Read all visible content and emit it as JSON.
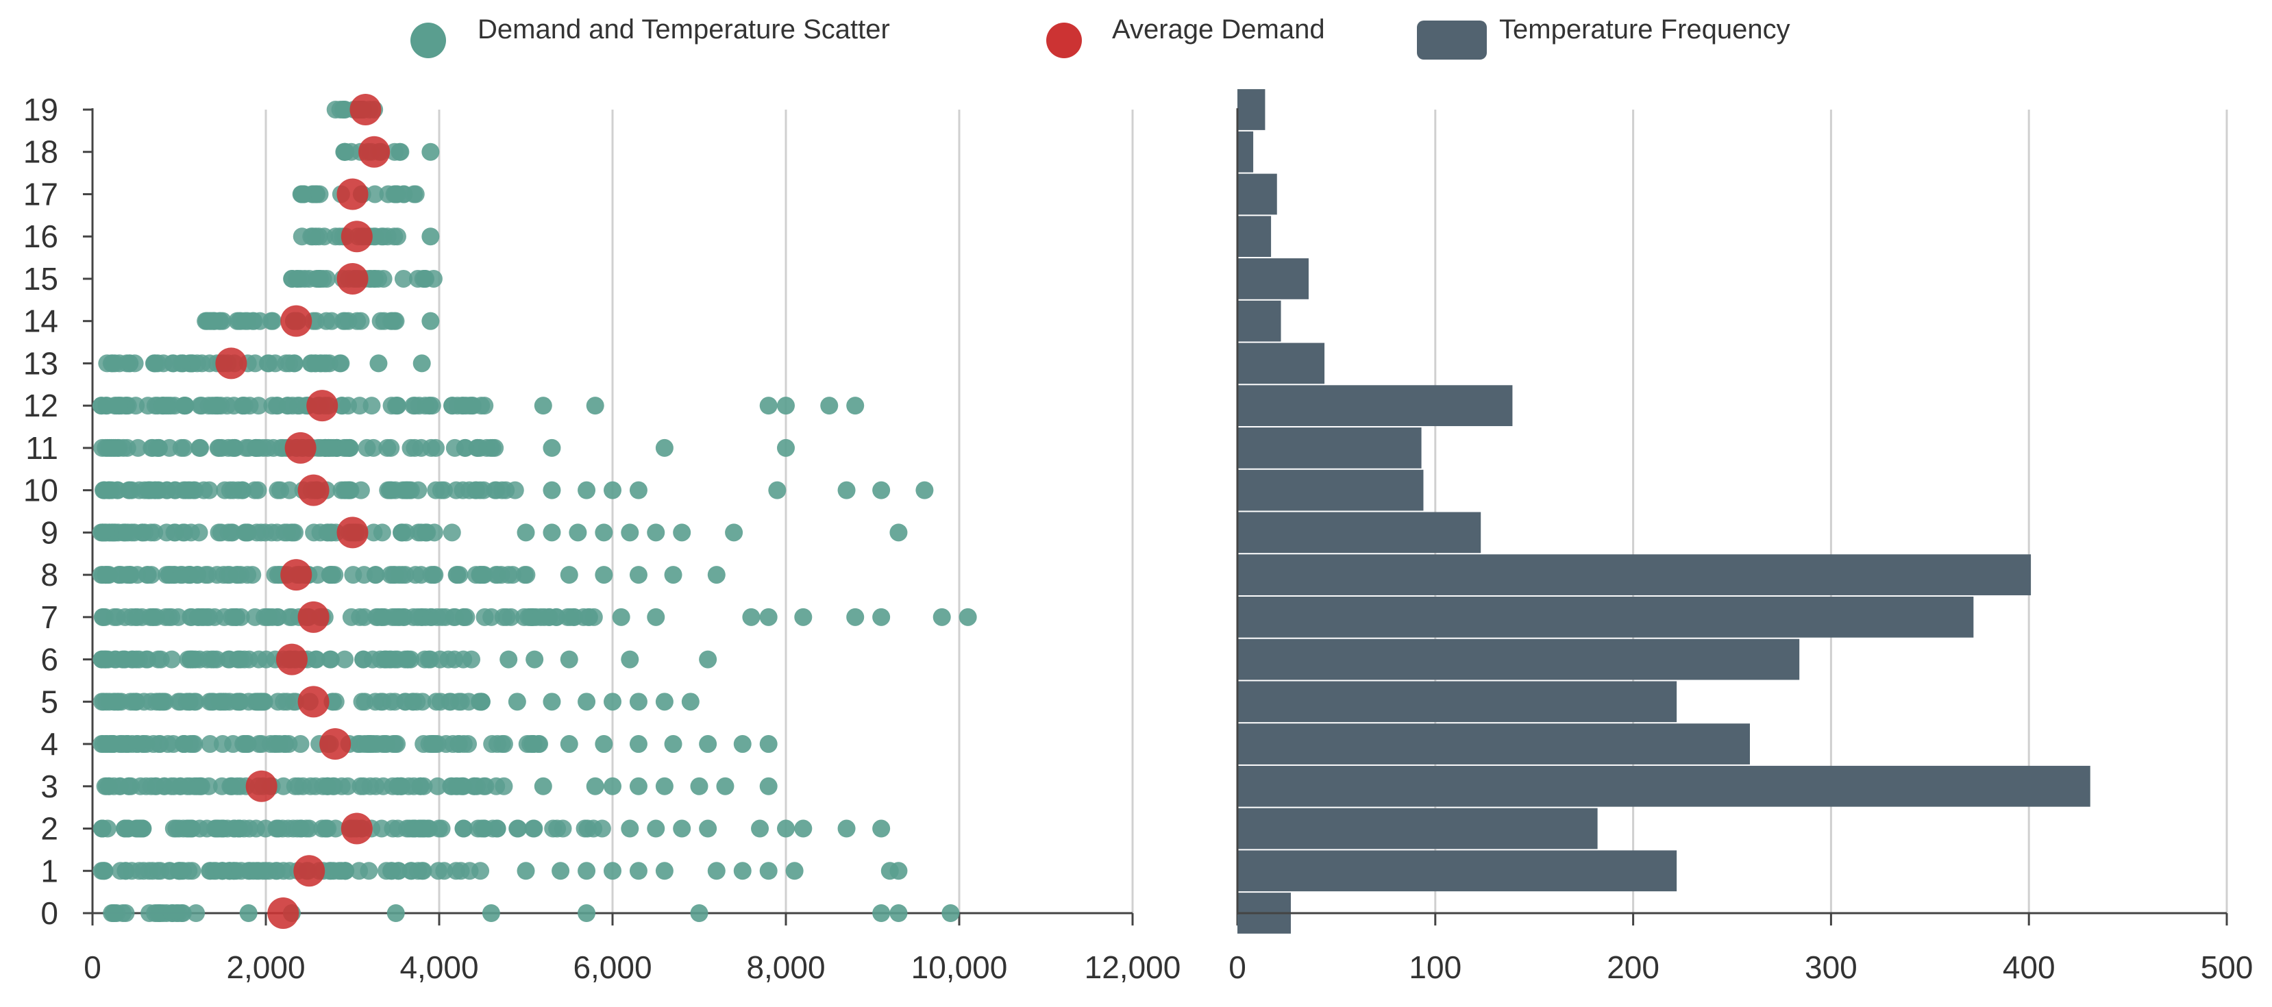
{
  "colors": {
    "scatter": "#5a9e8f",
    "average": "#cc3333",
    "histogram": "#526370",
    "grid": "#d0d0d0",
    "axis": "#444444"
  },
  "legend": [
    {
      "label": "Demand and Temperature Scatter",
      "shape": "circle",
      "color": "#5a9e8f"
    },
    {
      "label": "Average Demand",
      "shape": "circle",
      "color": "#cc3333"
    },
    {
      "label": "Temperature Frequency",
      "shape": "rect",
      "color": "#526370"
    }
  ],
  "chart_data": [
    {
      "type": "scatter",
      "title": "Demand and Temperature Scatter",
      "xlabel": "",
      "ylabel": "",
      "xlim": [
        0,
        12000
      ],
      "ylim": [
        0,
        19
      ],
      "x_ticks": [
        "0",
        "2,000",
        "4,000",
        "6,000",
        "8,000",
        "10,000",
        "12,000"
      ],
      "y_ticks": [
        "0",
        "1",
        "2",
        "3",
        "4",
        "5",
        "6",
        "7",
        "8",
        "9",
        "10",
        "11",
        "12",
        "13",
        "14",
        "15",
        "16",
        "17",
        "18",
        "19"
      ],
      "grid": "vertical",
      "series": [
        {
          "name": "Demand and Temperature Scatter",
          "rows": [
            {
              "y": 0,
              "range": [
                100,
                1200
              ],
              "extra": [
                1800,
                2300,
                3500,
                4600,
                5700,
                7000,
                9100,
                9300,
                9900
              ]
            },
            {
              "y": 1,
              "range": [
                100,
                4500
              ],
              "extra": [
                5000,
                5400,
                5700,
                6000,
                6300,
                6600,
                7200,
                7500,
                7800,
                8100,
                9200,
                9300
              ]
            },
            {
              "y": 2,
              "range": [
                100,
                5900
              ],
              "extra": [
                6200,
                6500,
                6800,
                7100,
                7700,
                8000,
                8200,
                8700,
                9100
              ]
            },
            {
              "y": 3,
              "range": [
                100,
                4800
              ],
              "extra": [
                5200,
                5800,
                6000,
                6300,
                6600,
                7000,
                7300,
                7800
              ]
            },
            {
              "y": 4,
              "range": [
                100,
                5200
              ],
              "extra": [
                5500,
                5900,
                6300,
                6700,
                7100,
                7500,
                7800
              ]
            },
            {
              "y": 5,
              "range": [
                100,
                4700
              ],
              "extra": [
                4900,
                5300,
                5700,
                6000,
                6300,
                6600,
                6900
              ]
            },
            {
              "y": 6,
              "range": [
                100,
                4500
              ],
              "extra": [
                4800,
                5100,
                5500,
                6200,
                7100
              ]
            },
            {
              "y": 7,
              "range": [
                100,
                5800
              ],
              "extra": [
                6100,
                6500,
                7600,
                7800,
                8200,
                8800,
                9100,
                9800,
                10100
              ]
            },
            {
              "y": 8,
              "range": [
                100,
                5200
              ],
              "extra": [
                5500,
                5900,
                6300,
                6700,
                7200
              ]
            },
            {
              "y": 9,
              "range": [
                100,
                4400
              ],
              "extra": [
                5000,
                5300,
                5600,
                5900,
                6200,
                6500,
                6800,
                7400,
                9300
              ]
            },
            {
              "y": 10,
              "range": [
                100,
                4900
              ],
              "extra": [
                5300,
                5700,
                6000,
                6300,
                7900,
                8700,
                9100,
                9600
              ]
            },
            {
              "y": 11,
              "range": [
                100,
                4800
              ],
              "extra": [
                5300,
                6600,
                8000
              ]
            },
            {
              "y": 12,
              "range": [
                100,
                4700
              ],
              "extra": [
                5200,
                5800,
                7800,
                8000,
                8500,
                8800
              ]
            },
            {
              "y": 13,
              "range": [
                100,
                3000
              ],
              "extra": [
                3300,
                3800
              ]
            },
            {
              "y": 14,
              "range": [
                1300,
                3600
              ],
              "extra": [
                3900
              ]
            },
            {
              "y": 15,
              "range": [
                2300,
                4000
              ],
              "extra": []
            },
            {
              "y": 16,
              "range": [
                2400,
                3600
              ],
              "extra": [
                3900
              ]
            },
            {
              "y": 17,
              "range": [
                2400,
                3900
              ],
              "extra": []
            },
            {
              "y": 18,
              "range": [
                2900,
                3600
              ],
              "extra": [
                3900
              ]
            },
            {
              "y": 19,
              "range": [
                2800,
                3600
              ],
              "extra": []
            }
          ]
        },
        {
          "name": "Average Demand",
          "points": [
            {
              "x": 2200,
              "y": 0
            },
            {
              "x": 2500,
              "y": 1
            },
            {
              "x": 3050,
              "y": 2
            },
            {
              "x": 1950,
              "y": 3
            },
            {
              "x": 2800,
              "y": 4
            },
            {
              "x": 2550,
              "y": 5
            },
            {
              "x": 2300,
              "y": 6
            },
            {
              "x": 2550,
              "y": 7
            },
            {
              "x": 2350,
              "y": 8
            },
            {
              "x": 3000,
              "y": 9
            },
            {
              "x": 2550,
              "y": 10
            },
            {
              "x": 2400,
              "y": 11
            },
            {
              "x": 2650,
              "y": 12
            },
            {
              "x": 1600,
              "y": 13
            },
            {
              "x": 2350,
              "y": 14
            },
            {
              "x": 3000,
              "y": 15
            },
            {
              "x": 3050,
              "y": 16
            },
            {
              "x": 3000,
              "y": 17
            },
            {
              "x": 3250,
              "y": 18
            },
            {
              "x": 3150,
              "y": 19
            }
          ]
        }
      ]
    },
    {
      "type": "bar",
      "orientation": "horizontal",
      "title": "Temperature Frequency",
      "xlabel": "",
      "ylabel": "",
      "xlim": [
        0,
        500
      ],
      "x_ticks": [
        "0",
        "100",
        "200",
        "300",
        "400",
        "500"
      ],
      "grid": "vertical",
      "categories": [
        "0",
        "1",
        "2",
        "3",
        "4",
        "5",
        "6",
        "7",
        "8",
        "9",
        "10",
        "11",
        "12",
        "13",
        "14",
        "15",
        "16",
        "17",
        "18",
        "19"
      ],
      "values": [
        27,
        222,
        182,
        431,
        259,
        222,
        284,
        372,
        401,
        123,
        94,
        93,
        139,
        44,
        22,
        36,
        17,
        20,
        8,
        14
      ]
    }
  ]
}
